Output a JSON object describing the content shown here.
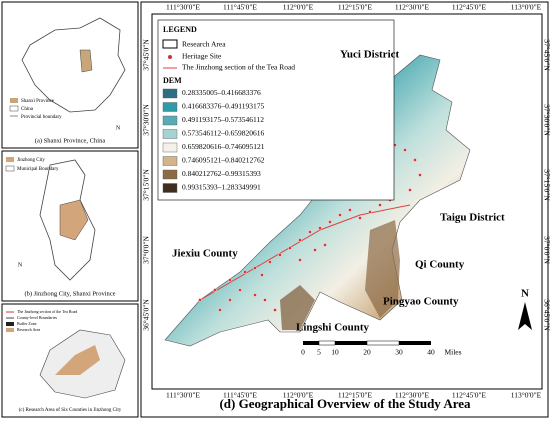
{
  "main_map": {
    "title": "(d) Geographical Overview of the Study Area",
    "longitude_labels": [
      "111°30'0\"E",
      "111°45'0\"E",
      "112°0'0\"E",
      "112°15'0\"E",
      "112°30'0\"E",
      "112°45'0\"E",
      "113°0'0\"E"
    ],
    "latitude_labels": [
      "37°45'0\"N",
      "37°30'0\"N",
      "37°15'0\"N",
      "37°0'0\"N",
      "36°45'0\"N"
    ],
    "legend": {
      "title": "LEGEND",
      "items": [
        "Research Area",
        "Heritage Site",
        "The Jinzhong section of the Tea Road"
      ],
      "dem_title": "DEM",
      "dem_classes": [
        "0.28335005–0.416683376",
        "0.416683376–0.491193175",
        "0.491193175–0.573546112",
        "0.573546112–0.659820616",
        "0.659820616–0.746095121",
        "0.746095121–0.840212762",
        "0.840212762–0.99315393",
        "0.99315393–1.283349991"
      ]
    },
    "places": [
      "Yuci District",
      "Taigu District",
      "Qi County",
      "Pingyao County",
      "Lingshi County",
      "Jiexiu County"
    ],
    "scale_labels": [
      "0",
      "5",
      "10",
      "20",
      "30",
      "40",
      "Miles"
    ],
    "north": "N"
  },
  "insets": [
    {
      "title": "(a) Shanxi Province, China",
      "legend": [
        "Shanxi Province",
        "China",
        "Provincial boundary"
      ],
      "north": "N"
    },
    {
      "title": "(b) Jinzhong City, Shanxi Province",
      "legend": [
        "Jinzhong City",
        "Municipal Boundary"
      ],
      "north": "N"
    },
    {
      "title": "(c) Research Area of Six Counties in Jinzhong City",
      "legend": [
        "The Jinzhong section of the Tea Road",
        "County-level Boundaries",
        "Buffer Zone",
        "Research Area"
      ]
    }
  ]
}
